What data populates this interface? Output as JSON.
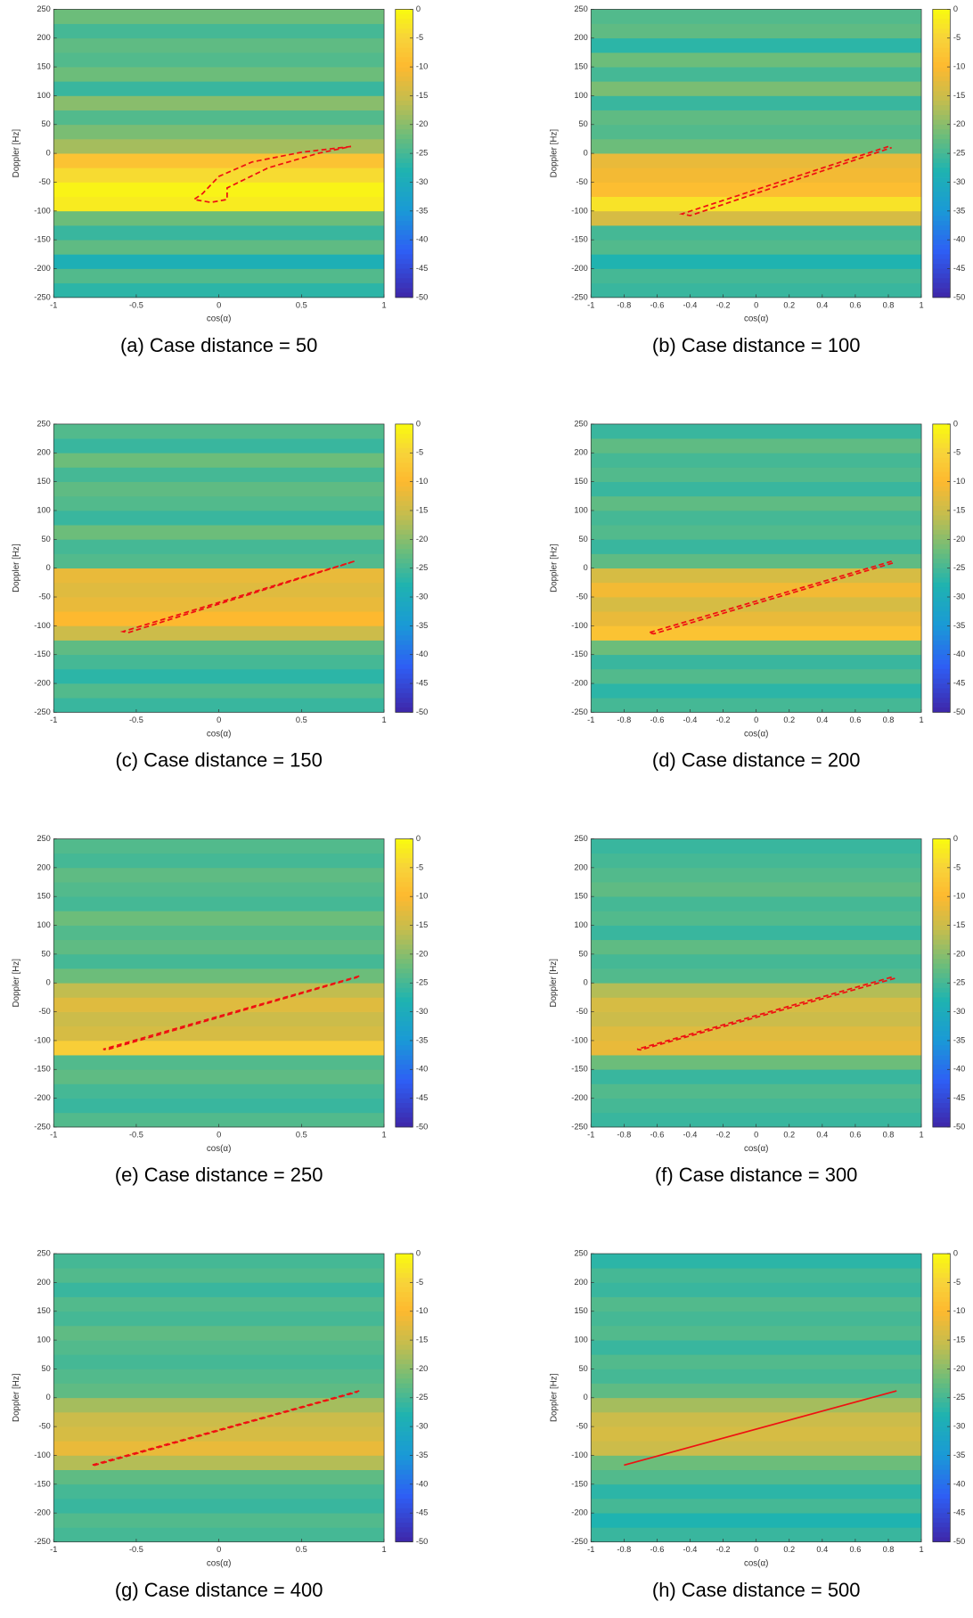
{
  "chart_data": [
    {
      "type": "heatmap",
      "caption": "(a) Case distance = 50",
      "xlabel": "cos(α)",
      "ylabel": "Doppler [Hz]",
      "xlim": [
        -1,
        1
      ],
      "ylim": [
        -250,
        250
      ],
      "xticks": [
        -1,
        -0.5,
        0,
        0.5,
        1
      ],
      "yticks": [
        -250,
        -200,
        -150,
        -100,
        -50,
        0,
        50,
        100,
        150,
        200,
        250
      ],
      "clim": [
        -50,
        0
      ],
      "cticks": [
        0,
        -5,
        -10,
        -15,
        -20,
        -25,
        -30,
        -35,
        -40,
        -45,
        -50
      ],
      "colormap": "parula",
      "y_edges": [
        -250,
        -225,
        -200,
        -175,
        -150,
        -125,
        -100,
        -75,
        -50,
        -25,
        0,
        25,
        50,
        75,
        100,
        125,
        150,
        175,
        200,
        225,
        250
      ],
      "values": [
        -27,
        -24,
        -29,
        -23,
        -26,
        -22,
        -2,
        -1,
        -4,
        -8,
        -18,
        -21,
        -24,
        -20,
        -26,
        -22,
        -24,
        -23,
        -25,
        -22
      ],
      "curve": {
        "x": [
          0.8,
          0.5,
          0.2,
          0,
          -0.1,
          -0.15,
          -0.05,
          0.05,
          0.05,
          0.3,
          0.6,
          0.8
        ],
        "values": [
          12,
          2,
          -15,
          -40,
          -70,
          -80,
          -85,
          -80,
          -60,
          -25,
          0,
          12
        ],
        "color": "#ee1111",
        "dashed": true
      }
    },
    {
      "type": "heatmap",
      "caption": "(b) Case distance = 100",
      "xlabel": "cos(α)",
      "ylabel": "Doppler [Hz]",
      "xlim": [
        -1,
        1
      ],
      "ylim": [
        -250,
        250
      ],
      "xticks": [
        -1,
        -0.8,
        -0.6,
        -0.4,
        -0.2,
        0,
        0.2,
        0.4,
        0.6,
        0.8,
        1
      ],
      "yticks": [
        -250,
        -200,
        -150,
        -100,
        -50,
        0,
        50,
        100,
        150,
        200,
        250
      ],
      "clim": [
        -50,
        0
      ],
      "cticks": [
        0,
        -5,
        -10,
        -15,
        -20,
        -25,
        -30,
        -35,
        -40,
        -45,
        -50
      ],
      "colormap": "parula",
      "y_edges": [
        -250,
        -225,
        -200,
        -175,
        -150,
        -125,
        -100,
        -75,
        -50,
        -25,
        0,
        25,
        50,
        75,
        100,
        125,
        150,
        175,
        200,
        225,
        250
      ],
      "values": [
        -26,
        -25,
        -28,
        -24,
        -25,
        -14,
        -3,
        -9,
        -11,
        -12,
        -22,
        -24,
        -23,
        -26,
        -21,
        -25,
        -22,
        -27,
        -23,
        -24
      ],
      "curve": {
        "x": [
          0.8,
          -0.45,
          -0.4,
          0.82
        ],
        "values": [
          12,
          -105,
          -108,
          10
        ],
        "color": "#ee1111",
        "dashed": true
      }
    },
    {
      "type": "heatmap",
      "caption": "(c) Case distance = 150",
      "xlabel": "cos(α)",
      "ylabel": "Doppler [Hz]",
      "xlim": [
        -1,
        1
      ],
      "ylim": [
        -250,
        250
      ],
      "xticks": [
        -1,
        -0.5,
        0,
        0.5,
        1
      ],
      "yticks": [
        -250,
        -200,
        -150,
        -100,
        -50,
        0,
        50,
        100,
        150,
        200,
        250
      ],
      "clim": [
        -50,
        0
      ],
      "cticks": [
        0,
        -5,
        -10,
        -15,
        -20,
        -25,
        -30,
        -35,
        -40,
        -45,
        -50
      ],
      "colormap": "parula",
      "y_edges": [
        -250,
        -225,
        -200,
        -175,
        -150,
        -125,
        -100,
        -75,
        -50,
        -25,
        0,
        25,
        50,
        75,
        100,
        125,
        150,
        175,
        200,
        225,
        250
      ],
      "values": [
        -26,
        -24,
        -27,
        -25,
        -23,
        -15,
        -10,
        -12,
        -13,
        -12,
        -24,
        -25,
        -22,
        -26,
        -24,
        -23,
        -25,
        -22,
        -26,
        -24
      ],
      "curve": {
        "x": [
          0.82,
          -0.58,
          -0.55,
          0.8
        ],
        "values": [
          12,
          -110,
          -112,
          10
        ],
        "color": "#ee1111",
        "dashed": true
      }
    },
    {
      "type": "heatmap",
      "caption": "(d) Case distance = 200",
      "xlabel": "cos(α)",
      "ylabel": "Doppler [Hz]",
      "xlim": [
        -1,
        1
      ],
      "ylim": [
        -250,
        250
      ],
      "xticks": [
        -1,
        -0.8,
        -0.6,
        -0.4,
        -0.2,
        0,
        0.2,
        0.4,
        0.6,
        0.8,
        1
      ],
      "yticks": [
        -250,
        -200,
        -150,
        -100,
        -50,
        0,
        50,
        100,
        150,
        200,
        250
      ],
      "clim": [
        -50,
        0
      ],
      "cticks": [
        0,
        -5,
        -10,
        -15,
        -20,
        -25,
        -30,
        -35,
        -40,
        -45,
        -50
      ],
      "colormap": "parula",
      "y_edges": [
        -250,
        -225,
        -200,
        -175,
        -150,
        -125,
        -100,
        -75,
        -50,
        -25,
        0,
        25,
        50,
        75,
        100,
        125,
        150,
        175,
        200,
        225,
        250
      ],
      "values": [
        -25,
        -27,
        -24,
        -26,
        -22,
        -8,
        -12,
        -14,
        -11,
        -14,
        -23,
        -26,
        -24,
        -25,
        -23,
        -26,
        -24,
        -25,
        -23,
        -26
      ],
      "curve": {
        "x": [
          0.82,
          -0.65,
          -0.62,
          0.84
        ],
        "values": [
          12,
          -112,
          -114,
          10
        ],
        "color": "#ee1111",
        "dashed": true
      }
    },
    {
      "type": "heatmap",
      "caption": "(e) Case distance = 250",
      "xlabel": "cos(α)",
      "ylabel": "Doppler [Hz]",
      "xlim": [
        -1,
        1
      ],
      "ylim": [
        -250,
        250
      ],
      "xticks": [
        -1,
        -0.5,
        0,
        0.5,
        1
      ],
      "yticks": [
        -250,
        -200,
        -150,
        -100,
        -50,
        0,
        50,
        100,
        150,
        200,
        250
      ],
      "clim": [
        -50,
        0
      ],
      "cticks": [
        0,
        -5,
        -10,
        -15,
        -20,
        -25,
        -30,
        -35,
        -40,
        -45,
        -50
      ],
      "colormap": "parula",
      "y_edges": [
        -250,
        -225,
        -200,
        -175,
        -150,
        -125,
        -100,
        -75,
        -50,
        -25,
        0,
        25,
        50,
        75,
        100,
        125,
        150,
        175,
        200,
        225,
        250
      ],
      "values": [
        -24,
        -26,
        -25,
        -23,
        -24,
        -6,
        -14,
        -15,
        -13,
        -16,
        -22,
        -25,
        -23,
        -24,
        -22,
        -25,
        -24,
        -23,
        -25,
        -24
      ],
      "curve": {
        "x": [
          0.85,
          -0.7,
          -0.68,
          0.84
        ],
        "values": [
          12,
          -115,
          -116,
          10
        ],
        "color": "#ee1111",
        "dashed": true
      }
    },
    {
      "type": "heatmap",
      "caption": "(f) Case distance = 300",
      "xlabel": "cos(α)",
      "ylabel": "Doppler [Hz]",
      "xlim": [
        -1,
        1
      ],
      "ylim": [
        -250,
        250
      ],
      "xticks": [
        -1,
        -0.8,
        -0.6,
        -0.4,
        -0.2,
        0,
        0.2,
        0.4,
        0.6,
        0.8,
        1
      ],
      "yticks": [
        -250,
        -200,
        -150,
        -100,
        -50,
        0,
        50,
        100,
        150,
        200,
        250
      ],
      "clim": [
        -50,
        0
      ],
      "cticks": [
        0,
        -5,
        -10,
        -15,
        -20,
        -25,
        -30,
        -35,
        -40,
        -45,
        -50
      ],
      "colormap": "parula",
      "y_edges": [
        -250,
        -225,
        -200,
        -175,
        -150,
        -125,
        -100,
        -75,
        -50,
        -25,
        0,
        25,
        50,
        75,
        100,
        125,
        150,
        175,
        200,
        225,
        250
      ],
      "values": [
        -26,
        -25,
        -24,
        -26,
        -22,
        -12,
        -13,
        -15,
        -14,
        -17,
        -24,
        -25,
        -23,
        -26,
        -24,
        -25,
        -23,
        -24,
        -25,
        -26
      ],
      "curve": {
        "x": [
          0.82,
          -0.72,
          -0.7,
          0.84
        ],
        "values": [
          10,
          -115,
          -116,
          8
        ],
        "color": "#ee1111",
        "dashed": true
      }
    },
    {
      "type": "heatmap",
      "caption": "(g) Case distance = 400",
      "xlabel": "cos(α)",
      "ylabel": "Doppler [Hz]",
      "xlim": [
        -1,
        1
      ],
      "ylim": [
        -250,
        250
      ],
      "xticks": [
        -1,
        -0.5,
        0,
        0.5,
        1
      ],
      "yticks": [
        -250,
        -200,
        -150,
        -100,
        -50,
        0,
        50,
        100,
        150,
        200,
        250
      ],
      "clim": [
        -50,
        0
      ],
      "cticks": [
        0,
        -5,
        -10,
        -15,
        -20,
        -25,
        -30,
        -35,
        -40,
        -45,
        -50
      ],
      "colormap": "parula",
      "y_edges": [
        -250,
        -225,
        -200,
        -175,
        -150,
        -125,
        -100,
        -75,
        -50,
        -25,
        0,
        25,
        50,
        75,
        100,
        125,
        150,
        175,
        200,
        225,
        250
      ],
      "values": [
        -25,
        -24,
        -26,
        -25,
        -23,
        -17,
        -12,
        -14,
        -15,
        -18,
        -23,
        -24,
        -25,
        -24,
        -23,
        -25,
        -24,
        -26,
        -24,
        -25
      ],
      "curve": {
        "x": [
          0.85,
          -0.77,
          -0.75,
          0.84
        ],
        "values": [
          12,
          -117,
          -117,
          10
        ],
        "color": "#ee1111",
        "dashed": true
      }
    },
    {
      "type": "heatmap",
      "caption": "(h) Case distance = 500",
      "xlabel": "cos(α)",
      "ylabel": "Doppler [Hz]",
      "xlim": [
        -1,
        1
      ],
      "ylim": [
        -250,
        250
      ],
      "xticks": [
        -1,
        -0.8,
        -0.6,
        -0.4,
        -0.2,
        0,
        0.2,
        0.4,
        0.6,
        0.8,
        1
      ],
      "yticks": [
        -250,
        -200,
        -150,
        -100,
        -50,
        0,
        50,
        100,
        150,
        200,
        250
      ],
      "clim": [
        -50,
        0
      ],
      "cticks": [
        0,
        -5,
        -10,
        -15,
        -20,
        -25,
        -30,
        -35,
        -40,
        -45,
        -50
      ],
      "colormap": "parula",
      "y_edges": [
        -250,
        -225,
        -200,
        -175,
        -150,
        -125,
        -100,
        -75,
        -50,
        -25,
        0,
        25,
        50,
        75,
        100,
        125,
        150,
        175,
        200,
        225,
        250
      ],
      "values": [
        -26,
        -28,
        -25,
        -27,
        -24,
        -22,
        -15,
        -14,
        -15,
        -18,
        -23,
        -25,
        -24,
        -26,
        -24,
        -25,
        -24,
        -26,
        -25,
        -27
      ],
      "curve": {
        "x": [
          -0.8,
          0.85
        ],
        "values": [
          -117,
          12
        ],
        "color": "#ee1111",
        "dashed": false
      }
    }
  ]
}
